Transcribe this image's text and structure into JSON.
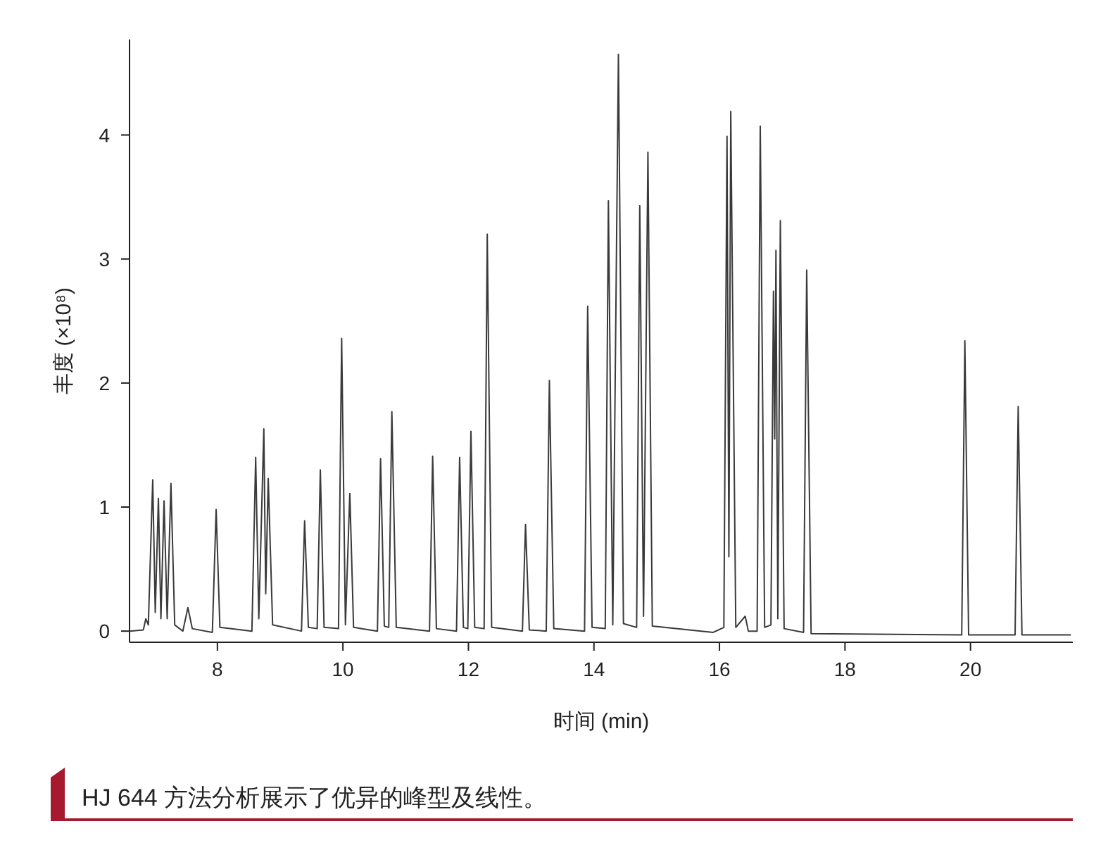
{
  "chart_data": {
    "type": "line",
    "xlabel": "时间 (min)",
    "ylabel": "丰度 (×10⁸)",
    "annotations": [
      "HJ 644 方法分析展示了优异的峰型及线性。"
    ],
    "xlim": [
      6.6,
      21.63
    ],
    "ylim": [
      -0.09,
      4.77
    ],
    "xticks": [
      8,
      10,
      12,
      14,
      16,
      18,
      20
    ],
    "yticks": [
      0,
      1,
      2,
      3,
      4
    ],
    "grid": false,
    "marker": "none",
    "line_style": "solid",
    "series": [
      {
        "color": "#3a3a3a",
        "x": [
          6.6,
          6.82,
          6.86,
          6.9,
          6.97,
          7.01,
          7.06,
          7.1,
          7.15,
          7.2,
          7.26,
          7.32,
          7.45,
          7.53,
          7.6,
          7.92,
          7.98,
          8.04,
          8.55,
          8.61,
          8.66,
          8.74,
          8.77,
          8.81,
          8.88,
          9.34,
          9.39,
          9.45,
          9.59,
          9.64,
          9.7,
          9.93,
          9.98,
          10.04,
          10.11,
          10.17,
          10.55,
          10.6,
          10.66,
          10.73,
          10.78,
          10.85,
          11.38,
          11.43,
          11.49,
          11.81,
          11.86,
          11.92,
          11.99,
          12.04,
          12.1,
          12.25,
          12.3,
          12.37,
          12.86,
          12.91,
          12.97,
          13.24,
          13.29,
          13.36,
          13.85,
          13.9,
          13.97,
          14.18,
          14.23,
          14.3,
          14.39,
          14.47,
          14.68,
          14.73,
          14.79,
          14.86,
          14.93,
          15.9,
          16.07,
          16.12,
          16.15,
          16.18,
          16.26,
          16.41,
          16.46,
          16.6,
          16.65,
          16.72,
          16.82,
          16.86,
          16.88,
          16.9,
          16.93,
          16.97,
          17.03,
          17.34,
          17.39,
          17.46,
          19.86,
          19.91,
          19.97,
          20.71,
          20.76,
          20.82,
          21.6
        ],
        "values": [
          0.0,
          0.01,
          0.1,
          0.05,
          1.22,
          0.15,
          1.07,
          0.1,
          1.05,
          0.1,
          1.19,
          0.05,
          0.0,
          0.19,
          0.02,
          -0.01,
          0.98,
          0.03,
          0.0,
          1.4,
          0.1,
          1.63,
          0.3,
          1.23,
          0.05,
          0.0,
          0.89,
          0.03,
          0.02,
          1.3,
          0.03,
          0.02,
          2.36,
          0.05,
          1.11,
          0.03,
          0.0,
          1.39,
          0.04,
          0.03,
          1.77,
          0.03,
          0.0,
          1.41,
          0.02,
          0.0,
          1.4,
          0.03,
          0.02,
          1.61,
          0.03,
          0.02,
          3.2,
          0.03,
          0.0,
          0.86,
          0.01,
          0.0,
          2.02,
          0.02,
          0.0,
          2.62,
          0.03,
          0.02,
          3.47,
          0.05,
          4.65,
          0.06,
          0.03,
          3.43,
          0.12,
          3.86,
          0.04,
          -0.01,
          0.03,
          3.99,
          0.6,
          4.19,
          0.03,
          0.12,
          0.0,
          0.0,
          4.07,
          0.03,
          0.05,
          2.74,
          1.55,
          3.07,
          0.1,
          3.31,
          0.02,
          -0.01,
          2.91,
          -0.02,
          -0.03,
          2.34,
          -0.03,
          -0.03,
          1.81,
          -0.03,
          -0.03
        ]
      }
    ]
  }
}
